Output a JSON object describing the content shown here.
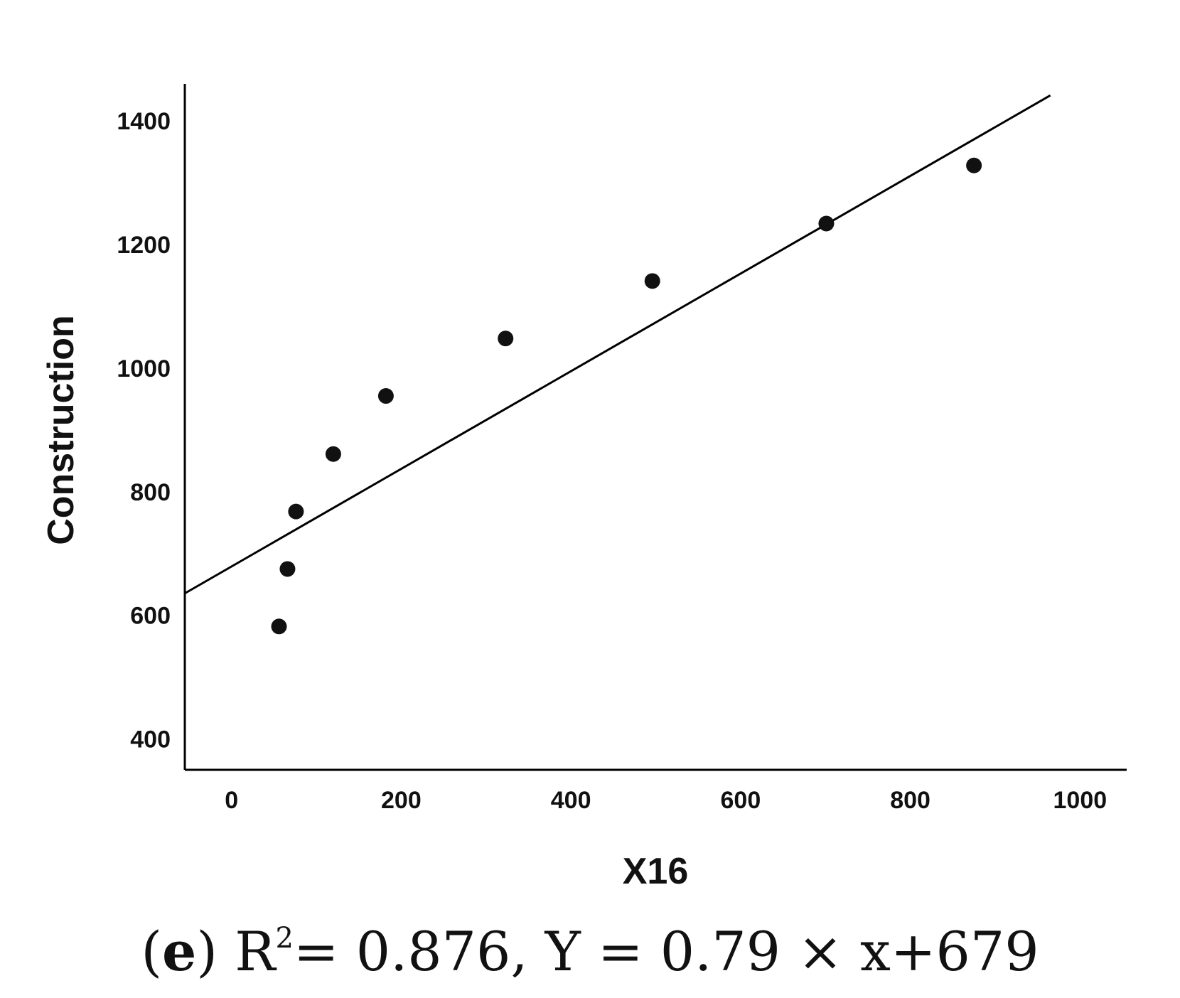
{
  "chart_data": {
    "type": "scatter",
    "xlabel": "X16",
    "ylabel": "Construction",
    "xlim": [
      -55,
      1055
    ],
    "ylim": [
      350,
      1460
    ],
    "x_ticks": [
      "0",
      "200",
      "400",
      "600",
      "800",
      "1000"
    ],
    "y_ticks": [
      "400",
      "600",
      "800",
      "1000",
      "1200",
      "1400"
    ],
    "points": [
      {
        "x": 56,
        "y": 582
      },
      {
        "x": 66,
        "y": 675
      },
      {
        "x": 76,
        "y": 768
      },
      {
        "x": 120,
        "y": 861
      },
      {
        "x": 182,
        "y": 955
      },
      {
        "x": 323,
        "y": 1048
      },
      {
        "x": 496,
        "y": 1141
      },
      {
        "x": 701,
        "y": 1234
      },
      {
        "x": 875,
        "y": 1328
      }
    ],
    "fit_line": {
      "slope": 0.79,
      "intercept": 679,
      "x_start": -55,
      "x_end": 965
    },
    "grid": false,
    "legend": "none"
  },
  "caption": {
    "open_paren": "(",
    "panel": "e",
    "close_paren": ")",
    "r_symbol": "R",
    "sup": "2",
    "equation": "= 0.876, Y = 0.79 × x+679"
  }
}
